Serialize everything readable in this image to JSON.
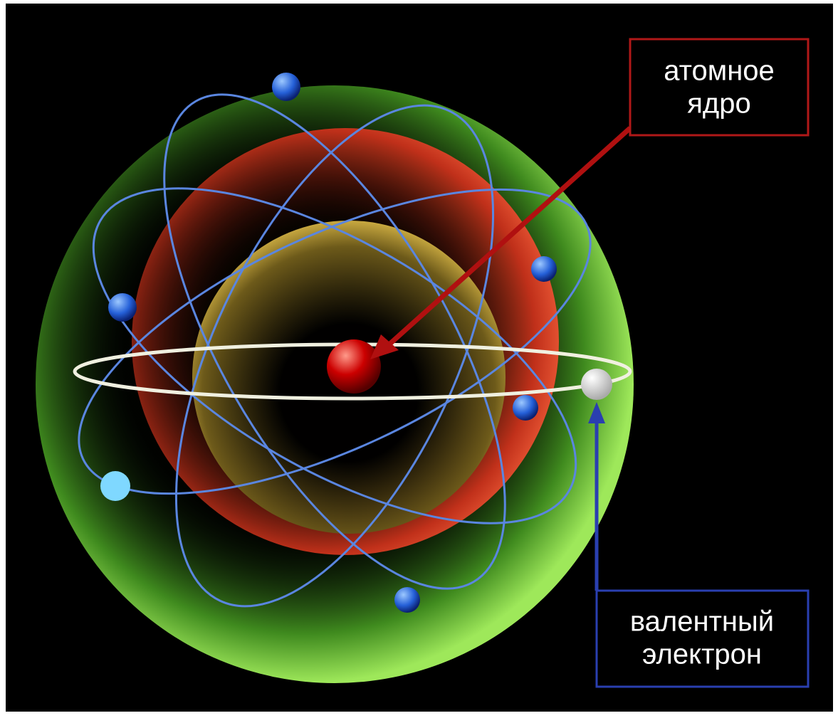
{
  "labels": [
    {
      "lines": [
        "атомное",
        "ядро"
      ]
    },
    {
      "lines": [
        "валентный",
        "электрон"
      ]
    }
  ]
}
